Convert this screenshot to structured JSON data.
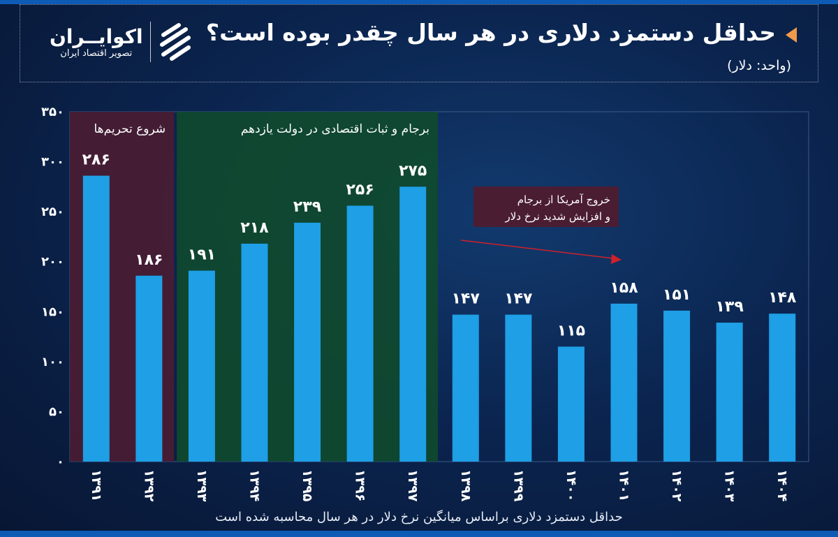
{
  "header": {
    "title": "حداقل دستمزد دلاری در هر سال چقدر بوده است؟",
    "unit": "(واحد: دلار)"
  },
  "logo": {
    "name": "اکوایــران",
    "tagline": "تصویر اقتصاد ایران"
  },
  "footer": "حداقل دستمزد دلاری براساس میانگین نرخ دلار در هر سال محاسبه شده است",
  "colors": {
    "bar": "#1e9fe6",
    "sanctions_band": "#4a1d33",
    "jcpoa_band": "#0f4a2e",
    "annotation_box": "#4a1d33",
    "arrow": "#d0202a"
  },
  "chart_data": {
    "type": "bar",
    "categories": [
      "۱۳۹۱",
      "۱۳۹۲",
      "۱۳۹۳",
      "۱۳۹۴",
      "۱۳۹۵",
      "۱۳۹۶",
      "۱۳۹۷",
      "۱۳۹۸",
      "۱۳۹۹",
      "۱۴۰۰",
      "۱۴۰۱",
      "۱۴۰۲",
      "۱۴۰۳",
      "۱۴۰۴"
    ],
    "values": [
      286,
      186,
      191,
      218,
      239,
      256,
      275,
      147,
      147,
      115,
      158,
      151,
      139,
      148
    ],
    "data_labels": [
      "۲۸۶",
      "۱۸۶",
      "۱۹۱",
      "۲۱۸",
      "۲۳۹",
      "۲۵۶",
      "۲۷۵",
      "۱۴۷",
      "۱۴۷",
      "۱۱۵",
      "۱۵۸",
      "۱۵۱",
      "۱۳۹",
      "۱۴۸"
    ],
    "ylim": [
      0,
      350
    ],
    "yticks": [
      0,
      50,
      100,
      150,
      200,
      250,
      300,
      350
    ],
    "ytick_labels": [
      "۰",
      "۵۰",
      "۱۰۰",
      "۱۵۰",
      "۲۰۰",
      "۲۵۰",
      "۳۰۰",
      "۳۵۰"
    ],
    "grid": false,
    "bands": [
      {
        "label": "شروع تحریم‌ها",
        "from": "۱۳۹۱",
        "to": "۱۳۹۲",
        "color": "#4a1d33"
      },
      {
        "label": "برجام و ثبات اقتصادی در دولت یازدهم",
        "from": "۱۳۹۳",
        "to": "۱۳۹۷",
        "color": "#0f4a2e"
      }
    ],
    "annotations": [
      {
        "text_line1": "خروج آمریکا از برجام",
        "text_line2": "و افزایش شدید نرخ دلار"
      }
    ]
  }
}
